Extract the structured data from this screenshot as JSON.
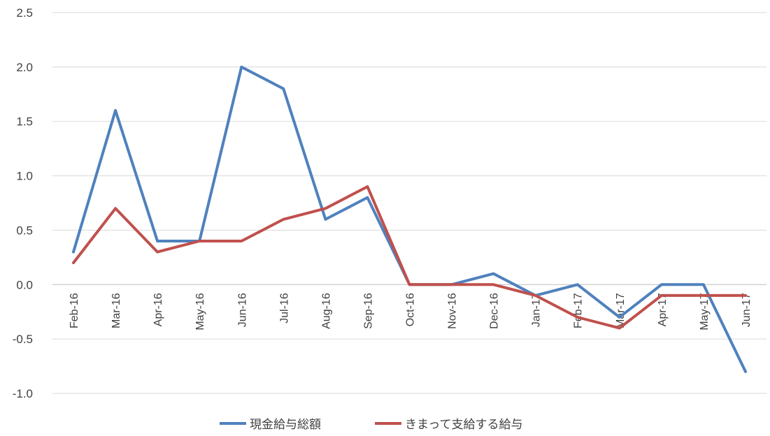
{
  "chart_data": {
    "type": "line",
    "x": [
      "Feb-16",
      "Mar-16",
      "Apr-16",
      "May-16",
      "Jun-16",
      "Jul-16",
      "Aug-16",
      "Sep-16",
      "Oct-16",
      "Nov-16",
      "Dec-16",
      "Jan-17",
      "Feb-17",
      "Mar-17",
      "Apr-17",
      "May-17",
      "Jun-17"
    ],
    "series": [
      {
        "name": "現金給与総額",
        "color": "#4F81BD",
        "values": [
          0.3,
          1.6,
          0.4,
          0.4,
          2.0,
          1.8,
          0.6,
          0.8,
          0.0,
          0.0,
          0.1,
          -0.1,
          0.0,
          -0.3,
          0.0,
          0.0,
          -0.8
        ]
      },
      {
        "name": "きまって支給する給与",
        "color": "#C0504D",
        "values": [
          0.2,
          0.7,
          0.3,
          0.4,
          0.4,
          0.6,
          0.7,
          0.9,
          0.0,
          0.0,
          0.0,
          -0.1,
          -0.3,
          -0.4,
          -0.1,
          -0.1,
          -0.1
        ]
      }
    ],
    "yticks": [
      "2.5",
      "2.0",
      "1.5",
      "1.0",
      "0.5",
      "0.0",
      "-0.5",
      "-1.0"
    ],
    "ylim": [
      -1.0,
      2.5
    ],
    "grid": true,
    "legend": "bottom"
  }
}
